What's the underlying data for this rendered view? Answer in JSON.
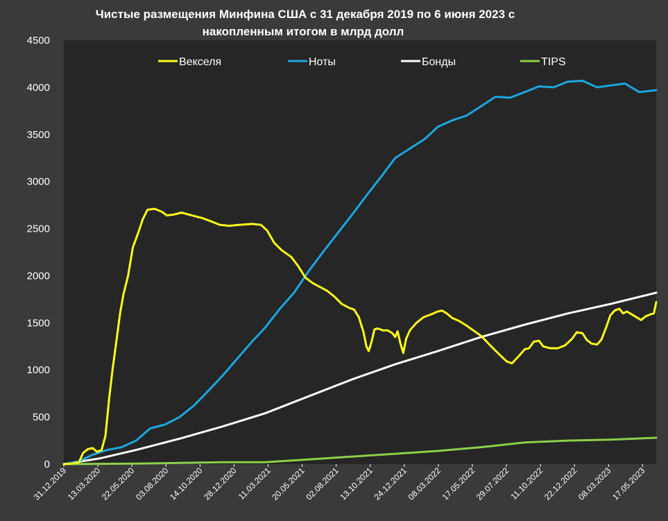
{
  "chart_data": {
    "type": "line",
    "title_line1": "Чистые размещения Минфина США с 31 декабря 2019 по 6 июня 2023 с",
    "title_line2": "накопленным итогом в млрд долл",
    "xlabel": "",
    "ylabel": "",
    "ylim": [
      0,
      4500
    ],
    "yticks": [
      0,
      500,
      1000,
      1500,
      2000,
      2500,
      3000,
      3500,
      4000,
      4500
    ],
    "x_tick_labels": [
      "31.12.2019",
      "13.03.2020",
      "22.05.2020",
      "03.08.2020",
      "14.10.2020",
      "28.12.2020",
      "11.03.2021",
      "20.05.2021",
      "02.08.2021",
      "13.10.2021",
      "24.12.2021",
      "08.03.2022",
      "17.05.2022",
      "29.07.2022",
      "11.10.2022",
      "22.12.2022",
      "08.03.2023",
      "17.05.2023"
    ],
    "x_range": [
      "2019-12-31",
      "2023-06-06"
    ],
    "grid": false,
    "legend_position": "top",
    "background_color": "#262626",
    "series": [
      {
        "name": "Векселя",
        "color": "#ffff1a",
        "points": [
          [
            "2019-12-31",
            0
          ],
          [
            "2020-01-15",
            5
          ],
          [
            "2020-02-01",
            20
          ],
          [
            "2020-02-10",
            120
          ],
          [
            "2020-02-20",
            160
          ],
          [
            "2020-03-01",
            170
          ],
          [
            "2020-03-10",
            130
          ],
          [
            "2020-03-20",
            150
          ],
          [
            "2020-03-28",
            300
          ],
          [
            "2020-04-05",
            700
          ],
          [
            "2020-04-12",
            1000
          ],
          [
            "2020-04-20",
            1300
          ],
          [
            "2020-04-28",
            1600
          ],
          [
            "2020-05-05",
            1800
          ],
          [
            "2020-05-15",
            2000
          ],
          [
            "2020-05-25",
            2300
          ],
          [
            "2020-06-05",
            2450
          ],
          [
            "2020-06-15",
            2600
          ],
          [
            "2020-06-25",
            2700
          ],
          [
            "2020-07-10",
            2710
          ],
          [
            "2020-07-25",
            2680
          ],
          [
            "2020-08-05",
            2640
          ],
          [
            "2020-08-20",
            2650
          ],
          [
            "2020-09-05",
            2670
          ],
          [
            "2020-09-20",
            2650
          ],
          [
            "2020-10-05",
            2630
          ],
          [
            "2020-10-20",
            2610
          ],
          [
            "2020-11-05",
            2580
          ],
          [
            "2020-11-25",
            2540
          ],
          [
            "2020-12-15",
            2530
          ],
          [
            "2021-01-05",
            2540
          ],
          [
            "2021-02-01",
            2550
          ],
          [
            "2021-02-20",
            2540
          ],
          [
            "2021-03-05",
            2480
          ],
          [
            "2021-03-20",
            2350
          ],
          [
            "2021-04-05",
            2270
          ],
          [
            "2021-04-25",
            2200
          ],
          [
            "2021-05-10",
            2100
          ],
          [
            "2021-05-25",
            1980
          ],
          [
            "2021-06-10",
            1920
          ],
          [
            "2021-06-25",
            1880
          ],
          [
            "2021-07-10",
            1840
          ],
          [
            "2021-07-25",
            1780
          ],
          [
            "2021-08-10",
            1700
          ],
          [
            "2021-08-25",
            1660
          ],
          [
            "2021-09-05",
            1640
          ],
          [
            "2021-09-15",
            1560
          ],
          [
            "2021-09-25",
            1400
          ],
          [
            "2021-10-01",
            1250
          ],
          [
            "2021-10-06",
            1200
          ],
          [
            "2021-10-12",
            1300
          ],
          [
            "2021-10-18",
            1430
          ],
          [
            "2021-10-25",
            1440
          ],
          [
            "2021-11-05",
            1420
          ],
          [
            "2021-11-15",
            1420
          ],
          [
            "2021-11-25",
            1390
          ],
          [
            "2021-12-01",
            1350
          ],
          [
            "2021-12-06",
            1410
          ],
          [
            "2021-12-12",
            1280
          ],
          [
            "2021-12-18",
            1180
          ],
          [
            "2021-12-24",
            1330
          ],
          [
            "2022-01-01",
            1420
          ],
          [
            "2022-01-15",
            1500
          ],
          [
            "2022-01-30",
            1560
          ],
          [
            "2022-02-15",
            1590
          ],
          [
            "2022-03-01",
            1620
          ],
          [
            "2022-03-10",
            1630
          ],
          [
            "2022-03-20",
            1600
          ],
          [
            "2022-04-01",
            1550
          ],
          [
            "2022-04-15",
            1520
          ],
          [
            "2022-05-01",
            1470
          ],
          [
            "2022-05-15",
            1420
          ],
          [
            "2022-06-01",
            1360
          ],
          [
            "2022-06-20",
            1260
          ],
          [
            "2022-07-10",
            1160
          ],
          [
            "2022-07-25",
            1090
          ],
          [
            "2022-08-05",
            1070
          ],
          [
            "2022-08-20",
            1150
          ],
          [
            "2022-09-01",
            1220
          ],
          [
            "2022-09-10",
            1230
          ],
          [
            "2022-09-20",
            1300
          ],
          [
            "2022-10-01",
            1310
          ],
          [
            "2022-10-10",
            1250
          ],
          [
            "2022-10-25",
            1230
          ],
          [
            "2022-11-10",
            1230
          ],
          [
            "2022-11-25",
            1260
          ],
          [
            "2022-12-10",
            1330
          ],
          [
            "2022-12-20",
            1400
          ],
          [
            "2023-01-01",
            1390
          ],
          [
            "2023-01-10",
            1320
          ],
          [
            "2023-01-20",
            1280
          ],
          [
            "2023-02-01",
            1270
          ],
          [
            "2023-02-10",
            1320
          ],
          [
            "2023-02-20",
            1450
          ],
          [
            "2023-03-01",
            1580
          ],
          [
            "2023-03-10",
            1630
          ],
          [
            "2023-03-20",
            1650
          ],
          [
            "2023-03-28",
            1600
          ],
          [
            "2023-04-05",
            1620
          ],
          [
            "2023-04-15",
            1590
          ],
          [
            "2023-04-25",
            1560
          ],
          [
            "2023-05-05",
            1530
          ],
          [
            "2023-05-15",
            1570
          ],
          [
            "2023-05-25",
            1590
          ],
          [
            "2023-06-01",
            1600
          ],
          [
            "2023-06-06",
            1720
          ]
        ]
      },
      {
        "name": "Ноты",
        "color": "#1aa7e0",
        "points": [
          [
            "2019-12-31",
            0
          ],
          [
            "2020-02-01",
            30
          ],
          [
            "2020-03-01",
            100
          ],
          [
            "2020-04-01",
            150
          ],
          [
            "2020-05-01",
            180
          ],
          [
            "2020-06-01",
            250
          ],
          [
            "2020-07-01",
            380
          ],
          [
            "2020-08-01",
            420
          ],
          [
            "2020-09-01",
            500
          ],
          [
            "2020-10-01",
            620
          ],
          [
            "2020-11-01",
            780
          ],
          [
            "2020-12-01",
            940
          ],
          [
            "2021-01-01",
            1120
          ],
          [
            "2021-02-01",
            1300
          ],
          [
            "2021-03-01",
            1450
          ],
          [
            "2021-04-01",
            1650
          ],
          [
            "2021-05-01",
            1820
          ],
          [
            "2021-06-01",
            2050
          ],
          [
            "2021-07-01",
            2250
          ],
          [
            "2021-08-01",
            2450
          ],
          [
            "2021-09-01",
            2650
          ],
          [
            "2021-10-01",
            2850
          ],
          [
            "2021-11-01",
            3050
          ],
          [
            "2021-12-01",
            3250
          ],
          [
            "2022-01-01",
            3350
          ],
          [
            "2022-02-01",
            3450
          ],
          [
            "2022-03-01",
            3580
          ],
          [
            "2022-04-01",
            3650
          ],
          [
            "2022-05-01",
            3700
          ],
          [
            "2022-06-01",
            3800
          ],
          [
            "2022-07-01",
            3900
          ],
          [
            "2022-08-01",
            3890
          ],
          [
            "2022-09-01",
            3950
          ],
          [
            "2022-10-01",
            4010
          ],
          [
            "2022-11-01",
            4000
          ],
          [
            "2022-12-01",
            4060
          ],
          [
            "2023-01-01",
            4070
          ],
          [
            "2023-02-01",
            4000
          ],
          [
            "2023-03-01",
            4020
          ],
          [
            "2023-04-01",
            4040
          ],
          [
            "2023-05-01",
            3950
          ],
          [
            "2023-06-06",
            3970
          ]
        ]
      },
      {
        "name": "Бонды",
        "color": "#ffffff",
        "points": [
          [
            "2019-12-31",
            0
          ],
          [
            "2020-03-15",
            60
          ],
          [
            "2020-06-01",
            150
          ],
          [
            "2020-09-01",
            270
          ],
          [
            "2020-12-01",
            400
          ],
          [
            "2021-03-01",
            540
          ],
          [
            "2021-06-01",
            720
          ],
          [
            "2021-09-01",
            900
          ],
          [
            "2021-12-01",
            1060
          ],
          [
            "2022-03-01",
            1200
          ],
          [
            "2022-06-01",
            1350
          ],
          [
            "2022-09-01",
            1480
          ],
          [
            "2022-12-01",
            1600
          ],
          [
            "2023-03-01",
            1700
          ],
          [
            "2023-06-06",
            1820
          ]
        ]
      },
      {
        "name": "TIPS",
        "color": "#8ed04a",
        "points": [
          [
            "2019-12-31",
            0
          ],
          [
            "2020-06-01",
            5
          ],
          [
            "2020-12-01",
            20
          ],
          [
            "2021-03-01",
            20
          ],
          [
            "2021-06-01",
            50
          ],
          [
            "2021-09-01",
            80
          ],
          [
            "2021-12-01",
            110
          ],
          [
            "2022-03-01",
            140
          ],
          [
            "2022-06-01",
            180
          ],
          [
            "2022-09-01",
            230
          ],
          [
            "2022-12-01",
            250
          ],
          [
            "2023-03-01",
            260
          ],
          [
            "2023-06-06",
            280
          ]
        ]
      }
    ]
  }
}
